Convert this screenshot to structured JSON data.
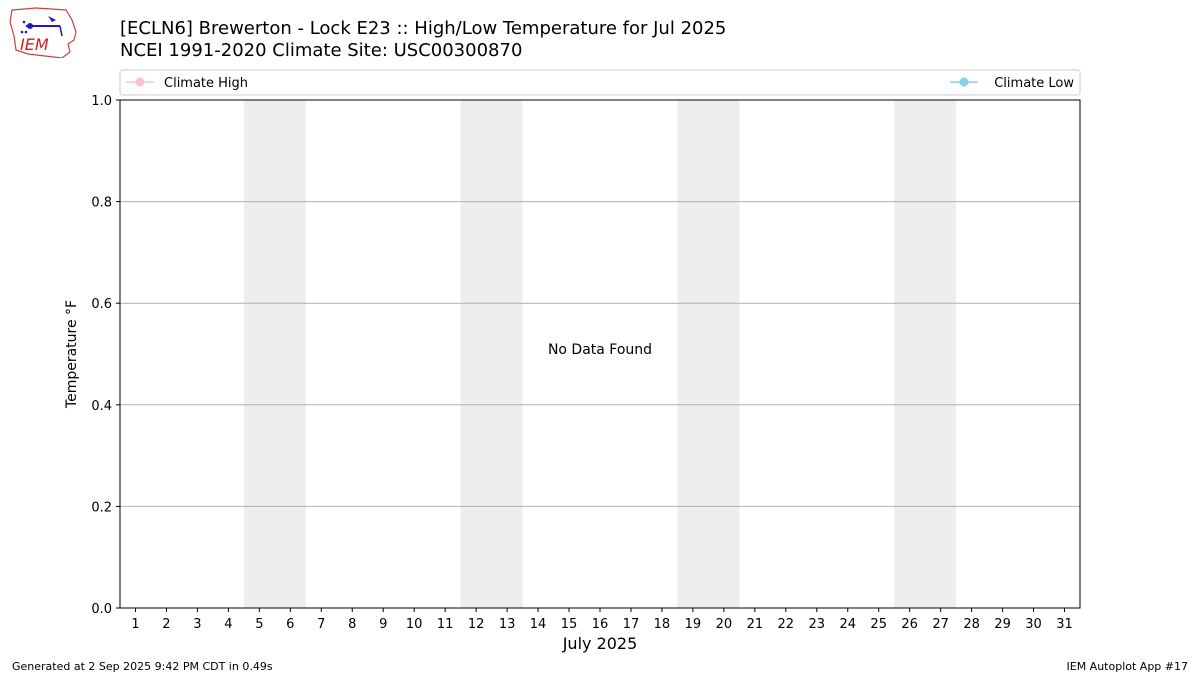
{
  "header": {
    "title_line1": "[ECLN6] Brewerton - Lock E23 :: High/Low Temperature for Jul 2025",
    "title_line2": "NCEI 1991-2020 Climate Site: USC00300870",
    "logo_text": "IEM"
  },
  "footer": {
    "generated": "Generated at 2 Sep 2025 9:42 PM CDT in 0.49s",
    "app": "IEM Autoplot App #17"
  },
  "chart_data": {
    "type": "line",
    "title": "[ECLN6] Brewerton - Lock E23 :: High/Low Temperature for Jul 2025",
    "subtitle": "NCEI 1991-2020 Climate Site: USC00300870",
    "xlabel": "July 2025",
    "ylabel": "Temperature °F",
    "x_categories": [
      "1",
      "2",
      "3",
      "4",
      "5",
      "6",
      "7",
      "8",
      "9",
      "10",
      "11",
      "12",
      "13",
      "14",
      "15",
      "16",
      "17",
      "18",
      "19",
      "20",
      "21",
      "22",
      "23",
      "24",
      "25",
      "26",
      "27",
      "28",
      "29",
      "30",
      "31"
    ],
    "xlim": [
      0.5,
      31.5
    ],
    "ylim": [
      0,
      1
    ],
    "yticks": [
      "0.0",
      "0.2",
      "0.4",
      "0.6",
      "0.8",
      "1.0"
    ],
    "ytick_values": [
      0,
      0.2,
      0.4,
      0.6,
      0.8,
      1.0
    ],
    "weekend_bands": [
      [
        5,
        6
      ],
      [
        12,
        13
      ],
      [
        19,
        20
      ],
      [
        26,
        27
      ]
    ],
    "grid": "horizontal",
    "legend_placement": "top",
    "series": [
      {
        "name": "Climate High",
        "color": "#ffc0cb",
        "values": []
      },
      {
        "name": "Climate Low",
        "color": "#87ceeb",
        "values": []
      }
    ],
    "annotation": "No Data Found",
    "colors": {
      "band": "#eeeeee",
      "grid": "#b0b0b0"
    }
  }
}
